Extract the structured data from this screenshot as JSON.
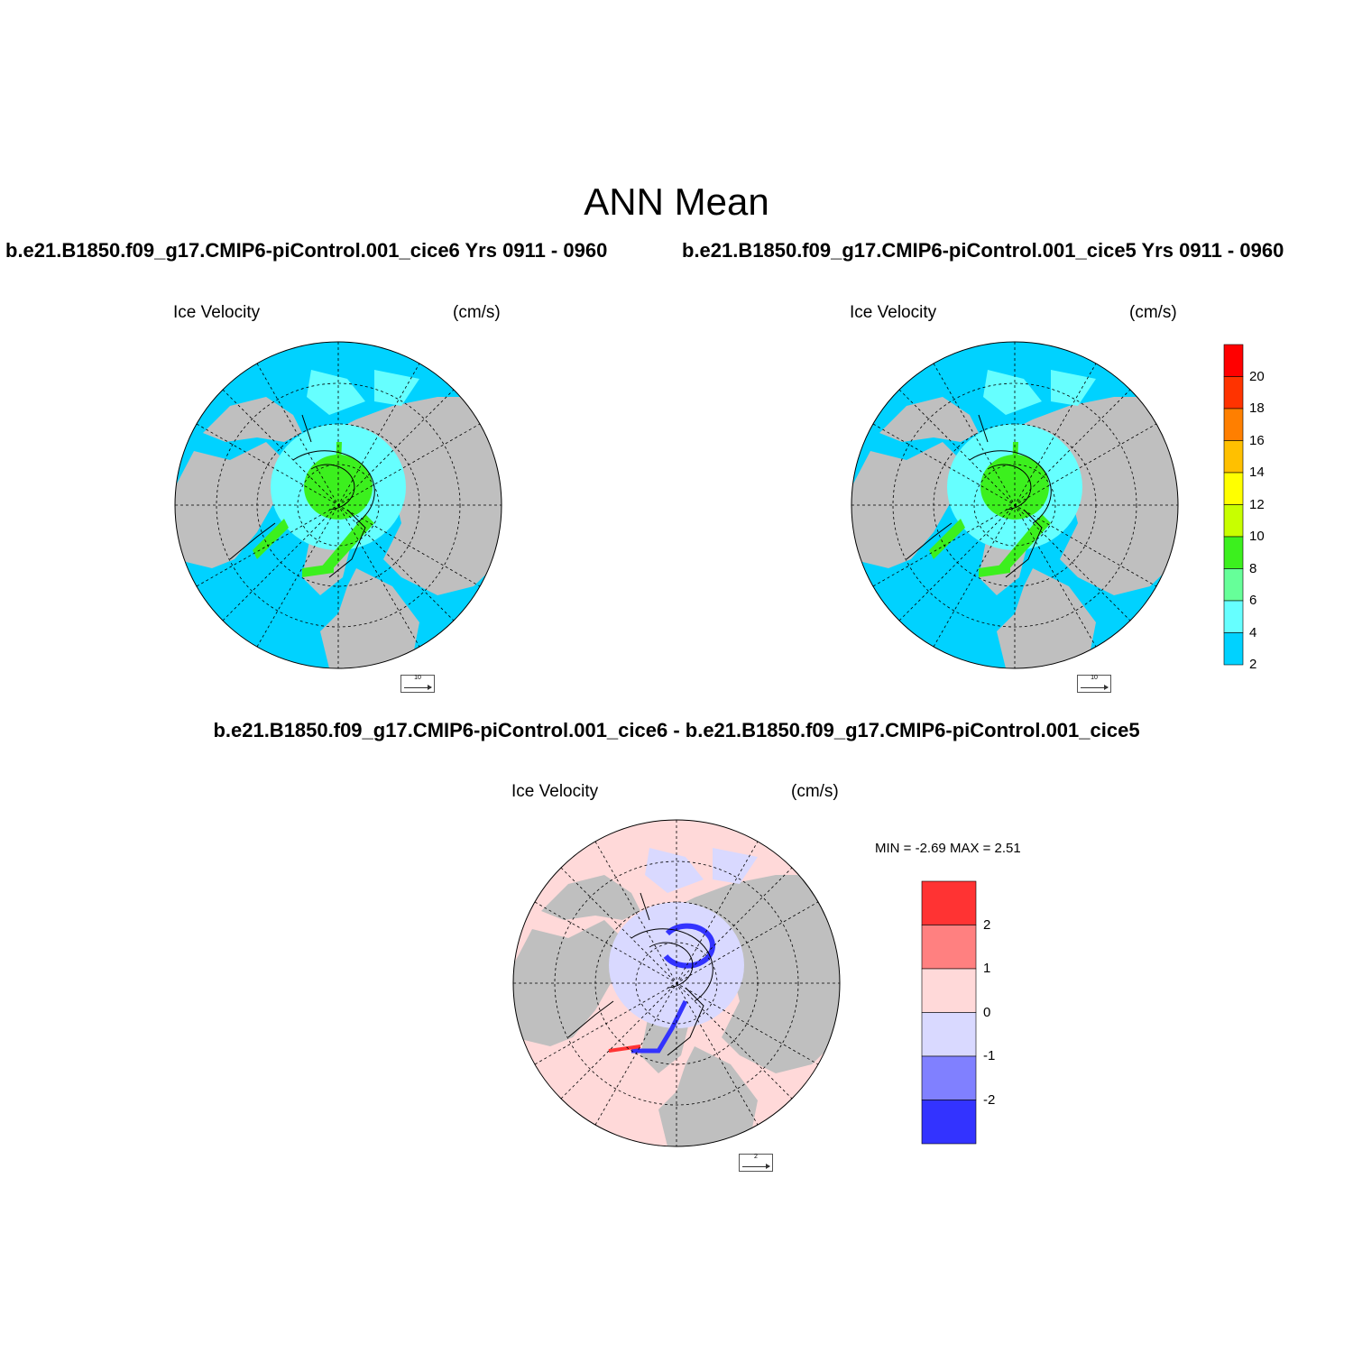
{
  "title": "ANN Mean",
  "panels": [
    {
      "id": "cice6",
      "subtitle": "b.e21.B1850.f09_g17.CMIP6-piControl.001_cice6  Yrs 0911 - 0960",
      "left_label": "Ice Velocity",
      "right_label": "(cm/s)",
      "ref_vector": "10"
    },
    {
      "id": "cice5",
      "subtitle": "b.e21.B1850.f09_g17.CMIP6-piControl.001_cice5  Yrs 0911 - 0960",
      "left_label": "Ice Velocity",
      "right_label": "(cm/s)",
      "ref_vector": "10"
    },
    {
      "id": "diff",
      "subtitle": "b.e21.B1850.f09_g17.CMIP6-piControl.001_cice6 - b.e21.B1850.f09_g17.CMIP6-piControl.001_cice5",
      "left_label": "Ice Velocity",
      "right_label": "(cm/s)",
      "ref_vector": "2",
      "minmax": "MIN =  -2.69 MAX =   2.51"
    }
  ],
  "colorbar_main": {
    "ticks": [
      "20",
      "18",
      "16",
      "14",
      "12",
      "10",
      "8",
      "6",
      "4",
      "2"
    ],
    "colors": [
      "#ff0000",
      "#ff3300",
      "#ff7f00",
      "#ffc000",
      "#ffff00",
      "#c8ff00",
      "#3cf01e",
      "#66ff99",
      "#66ffff",
      "#00d2ff"
    ]
  },
  "colorbar_diff": {
    "ticks": [
      "2",
      "1",
      "0",
      "-1",
      "-2"
    ],
    "colors": [
      "#ff3333",
      "#ff8080",
      "#ffd9d9",
      "#d9d9ff",
      "#8080ff",
      "#3333ff"
    ]
  },
  "map_colors": {
    "ocean": "#00d2ff",
    "land": "#bfbfbf",
    "diff_ocean": "#ffd9d9",
    "diff_ice": "#d9d9ff",
    "gyre": "#66ffff",
    "strong": "#3cf01e",
    "peak": "#ffff00"
  }
}
